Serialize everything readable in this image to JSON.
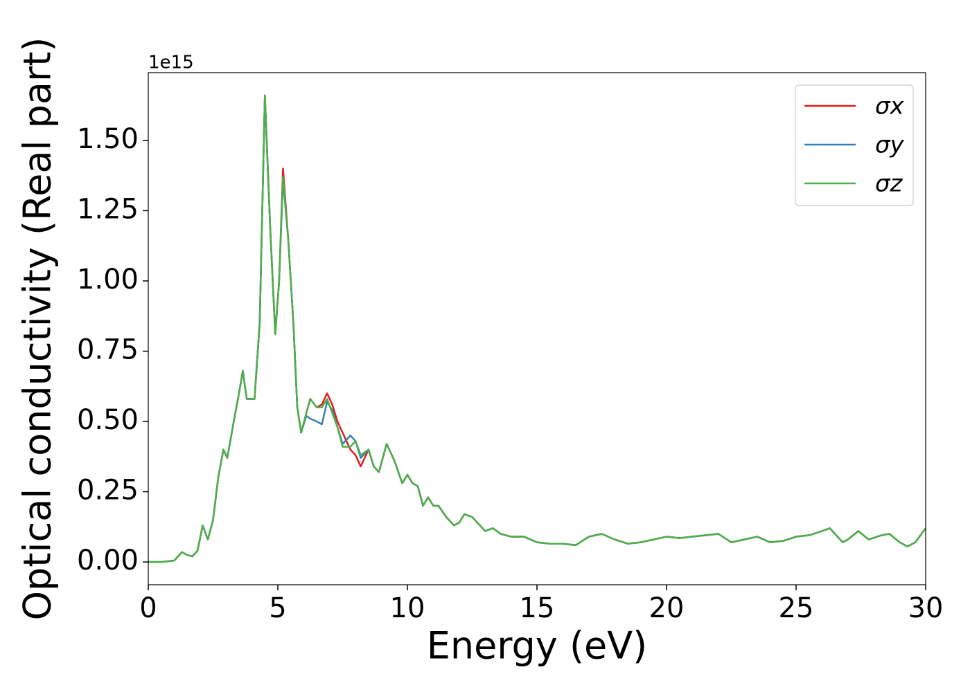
{
  "chart_data": {
    "type": "line",
    "xlabel": "Energy (eV)",
    "ylabel": "Optical conductivity (Real part)",
    "y_offset_label": "1e15",
    "x": [
      0,
      0.5,
      1,
      1.3,
      1.5,
      1.7,
      1.9,
      2.1,
      2.3,
      2.5,
      2.7,
      2.9,
      3.05,
      3.3,
      3.5,
      3.65,
      3.8,
      3.95,
      4.1,
      4.3,
      4.5,
      4.7,
      4.9,
      5.05,
      5.2,
      5.4,
      5.6,
      5.75,
      5.9,
      6.1,
      6.25,
      6.5,
      6.7,
      6.9,
      7.1,
      7.3,
      7.5,
      7.8,
      8,
      8.2,
      8.5,
      8.7,
      8.9,
      9.2,
      9.5,
      9.8,
      10,
      10.2,
      10.4,
      10.6,
      10.8,
      11,
      11.2,
      11.5,
      11.8,
      12,
      12.2,
      12.5,
      12.8,
      13,
      13.3,
      13.6,
      14,
      14.5,
      15,
      15.5,
      16,
      16.5,
      17,
      17.5,
      18,
      18.5,
      19,
      19.5,
      20,
      20.5,
      21,
      21.5,
      22,
      22.5,
      23,
      23.5,
      24,
      24.5,
      25,
      25.5,
      26,
      26.3,
      26.8,
      27,
      27.4,
      27.8,
      28.3,
      28.6,
      29,
      29.3,
      29.6,
      30
    ],
    "series": [
      {
        "name": "σx",
        "color": "#e41a1c",
        "values": [
          0,
          0,
          0.005,
          0.035,
          0.025,
          0.02,
          0.04,
          0.13,
          0.08,
          0.15,
          0.3,
          0.4,
          0.37,
          0.5,
          0.6,
          0.68,
          0.58,
          0.58,
          0.58,
          0.85,
          1.66,
          1.2,
          0.81,
          1.0,
          1.4,
          1.15,
          0.85,
          0.55,
          0.46,
          0.53,
          0.58,
          0.55,
          0.56,
          0.6,
          0.56,
          0.5,
          0.46,
          0.4,
          0.38,
          0.34,
          0.4,
          0.34,
          0.32,
          0.42,
          0.36,
          0.28,
          0.31,
          0.28,
          0.27,
          0.2,
          0.23,
          0.2,
          0.2,
          0.16,
          0.13,
          0.14,
          0.17,
          0.16,
          0.13,
          0.11,
          0.12,
          0.1,
          0.09,
          0.09,
          0.07,
          0.065,
          0.065,
          0.06,
          0.09,
          0.1,
          0.08,
          0.065,
          0.07,
          0.08,
          0.09,
          0.085,
          0.09,
          0.095,
          0.1,
          0.07,
          0.08,
          0.09,
          0.07,
          0.075,
          0.09,
          0.095,
          0.11,
          0.12,
          0.07,
          0.08,
          0.11,
          0.08,
          0.095,
          0.1,
          0.07,
          0.055,
          0.07,
          0.12
        ]
      },
      {
        "name": "σy",
        "color": "#377eb8",
        "values": [
          0,
          0,
          0.005,
          0.035,
          0.025,
          0.02,
          0.04,
          0.13,
          0.08,
          0.15,
          0.3,
          0.4,
          0.37,
          0.5,
          0.6,
          0.68,
          0.58,
          0.58,
          0.58,
          0.85,
          1.66,
          1.2,
          0.81,
          1.0,
          1.36,
          1.15,
          0.85,
          0.55,
          0.46,
          0.52,
          0.51,
          0.5,
          0.49,
          0.57,
          0.54,
          0.48,
          0.42,
          0.45,
          0.43,
          0.37,
          0.4,
          0.34,
          0.32,
          0.42,
          0.36,
          0.28,
          0.31,
          0.28,
          0.27,
          0.2,
          0.23,
          0.2,
          0.2,
          0.16,
          0.13,
          0.14,
          0.17,
          0.16,
          0.13,
          0.11,
          0.12,
          0.1,
          0.09,
          0.09,
          0.07,
          0.065,
          0.065,
          0.06,
          0.09,
          0.1,
          0.08,
          0.065,
          0.07,
          0.08,
          0.09,
          0.085,
          0.09,
          0.095,
          0.1,
          0.07,
          0.08,
          0.09,
          0.07,
          0.075,
          0.09,
          0.095,
          0.11,
          0.12,
          0.07,
          0.08,
          0.11,
          0.08,
          0.095,
          0.1,
          0.07,
          0.055,
          0.07,
          0.12
        ]
      },
      {
        "name": "σz",
        "color": "#4daf4a",
        "values": [
          0,
          0,
          0.005,
          0.035,
          0.025,
          0.02,
          0.04,
          0.13,
          0.08,
          0.15,
          0.3,
          0.4,
          0.37,
          0.5,
          0.6,
          0.68,
          0.58,
          0.58,
          0.58,
          0.85,
          1.66,
          1.2,
          0.81,
          1.0,
          1.37,
          1.15,
          0.85,
          0.55,
          0.46,
          0.53,
          0.58,
          0.55,
          0.55,
          0.58,
          0.53,
          0.48,
          0.41,
          0.41,
          0.43,
          0.38,
          0.4,
          0.34,
          0.32,
          0.42,
          0.36,
          0.28,
          0.31,
          0.28,
          0.27,
          0.2,
          0.23,
          0.2,
          0.2,
          0.16,
          0.13,
          0.14,
          0.17,
          0.16,
          0.13,
          0.11,
          0.12,
          0.1,
          0.09,
          0.09,
          0.07,
          0.065,
          0.065,
          0.06,
          0.09,
          0.1,
          0.08,
          0.065,
          0.07,
          0.08,
          0.09,
          0.085,
          0.09,
          0.095,
          0.1,
          0.07,
          0.08,
          0.09,
          0.07,
          0.075,
          0.09,
          0.095,
          0.11,
          0.12,
          0.07,
          0.08,
          0.11,
          0.08,
          0.095,
          0.1,
          0.07,
          0.055,
          0.07,
          0.12
        ]
      }
    ],
    "xlim": [
      0,
      30
    ],
    "xticks": [
      0,
      5,
      10,
      15,
      20,
      25,
      30
    ],
    "ylim": [
      -0.081,
      1.741
    ],
    "yticks": [
      {
        "value": 0,
        "label": "0.00"
      },
      {
        "value": 0.25,
        "label": "0.25"
      },
      {
        "value": 0.5,
        "label": "0.50"
      },
      {
        "value": 0.75,
        "label": "0.75"
      },
      {
        "value": 1.0,
        "label": "1.00"
      },
      {
        "value": 1.25,
        "label": "1.25"
      },
      {
        "value": 1.5,
        "label": "1.50"
      }
    ],
    "grid": false,
    "legend": "upper right"
  }
}
